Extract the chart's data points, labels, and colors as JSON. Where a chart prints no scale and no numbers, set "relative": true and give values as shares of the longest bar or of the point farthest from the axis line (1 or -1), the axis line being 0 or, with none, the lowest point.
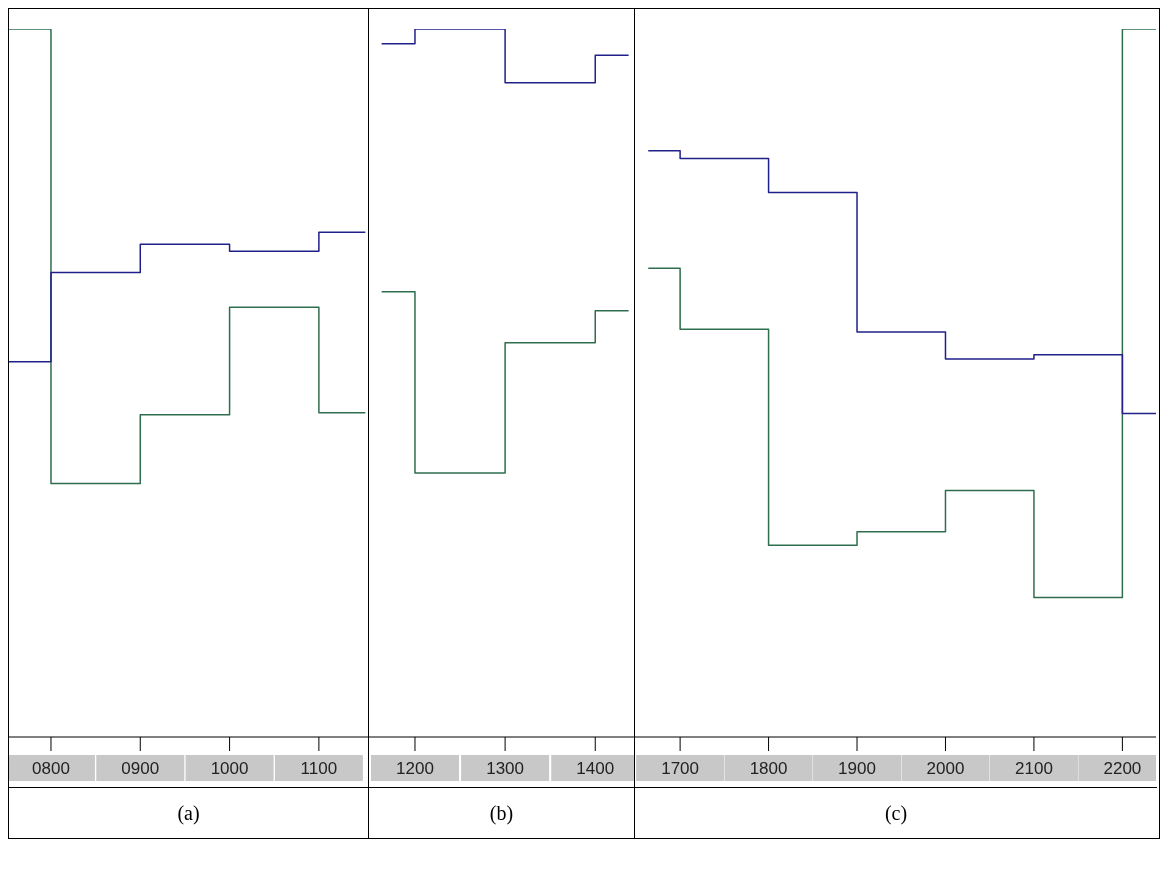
{
  "chart_data": [
    {
      "type": "step",
      "relative": true,
      "x": [
        753,
        800,
        900,
        1000,
        1100,
        1152
      ],
      "xlim": [
        753,
        1155
      ],
      "xticks": [
        {
          "value": 800,
          "label": "0800"
        },
        {
          "value": 900,
          "label": "0900"
        },
        {
          "value": 1000,
          "label": "1000"
        },
        {
          "value": 1100,
          "label": "1100"
        }
      ],
      "series": [
        {
          "color": "#2e6e4e",
          "values": [
            1.0,
            0.358,
            0.455,
            0.607,
            0.458,
            0.458
          ]
        },
        {
          "color": "#20208a",
          "values": [
            0.53,
            0.656,
            0.696,
            0.686,
            0.713,
            0.713
          ]
        }
      ],
      "annotations": [
        "(a)"
      ]
    },
    {
      "type": "step",
      "relative": true,
      "x": [
        1163,
        1200,
        1300,
        1400,
        1437
      ],
      "xlim": [
        1149,
        1443
      ],
      "xticks": [
        {
          "value": 1200,
          "label": "1200"
        },
        {
          "value": 1300,
          "label": "1300"
        },
        {
          "value": 1400,
          "label": "1400"
        }
      ],
      "series": [
        {
          "color": "#2e6e4e",
          "values": [
            0.629,
            0.373,
            0.557,
            0.602,
            0.602
          ]
        },
        {
          "color": "#20208a",
          "values": [
            0.979,
            1.0,
            0.924,
            0.963,
            0.963
          ]
        }
      ],
      "annotations": [
        "(b)"
      ]
    },
    {
      "type": "step",
      "relative": true,
      "x": [
        1664,
        1700,
        1800,
        1900,
        2000,
        2100,
        2200,
        2238
      ],
      "xlim": [
        1649,
        2238
      ],
      "xticks": [
        {
          "value": 1700,
          "label": "1700"
        },
        {
          "value": 1800,
          "label": "1800"
        },
        {
          "value": 1900,
          "label": "1900"
        },
        {
          "value": 2000,
          "label": "2000"
        },
        {
          "value": 2100,
          "label": "2100"
        },
        {
          "value": 2200,
          "label": "2200"
        }
      ],
      "series": [
        {
          "color": "#2e6e4e",
          "values": [
            0.662,
            0.576,
            0.271,
            0.29,
            0.348,
            0.197,
            1.0,
            1.0
          ]
        },
        {
          "color": "#20208a",
          "values": [
            0.828,
            0.817,
            0.769,
            0.572,
            0.534,
            0.54,
            0.457,
            0.457
          ]
        }
      ],
      "annotations": [
        "(c)"
      ]
    }
  ]
}
